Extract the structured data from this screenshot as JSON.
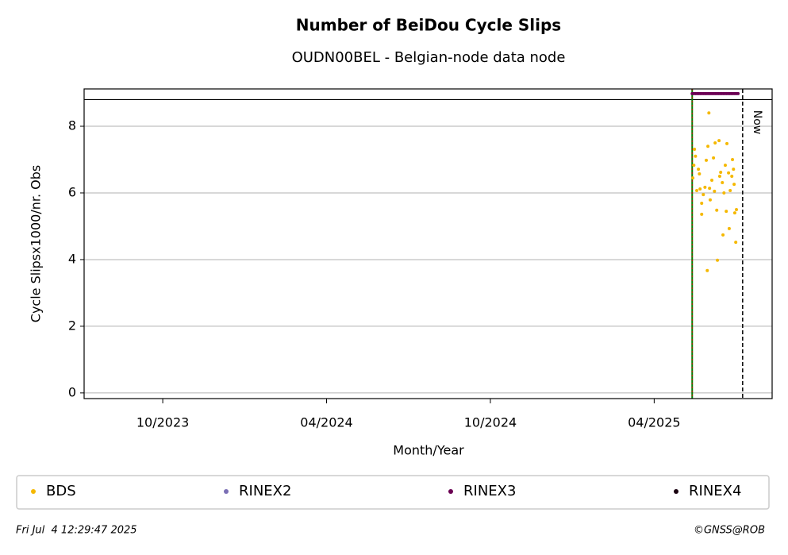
{
  "chart_data": {
    "type": "scatter",
    "title": "Number of BeiDou Cycle Slips",
    "subtitle": "OUDN00BEL - Belgian-node data node",
    "x_label": "Month/Year",
    "y_label": "Cycle Slipsx1000/nr. Obs",
    "xlim": [
      2023.51,
      2025.61
    ],
    "xticks": [
      {
        "value": 2023.75,
        "label": "10/2023"
      },
      {
        "value": 2024.25,
        "label": "04/2024"
      },
      {
        "value": 2024.75,
        "label": "10/2024"
      },
      {
        "value": 2025.25,
        "label": "04/2025"
      }
    ],
    "ylim": [
      -0.17,
      9.12
    ],
    "yticks": [
      0,
      2,
      4,
      6,
      8
    ],
    "grid": true,
    "hlines": [
      8.8
    ],
    "vlines": [
      {
        "x": 2025.366,
        "color": "#008000"
      },
      {
        "x": 2025.52,
        "label": "Now",
        "color": "#000000"
      }
    ],
    "legend": "bottom",
    "series": [
      {
        "name": "BDS",
        "color": "#f5b800",
        "x": [
          2025.368,
          2025.371,
          2025.373,
          2025.376,
          2025.38,
          2025.385,
          2025.388,
          2025.39,
          2025.395,
          2025.395,
          2025.4,
          2025.405,
          2025.409,
          2025.412,
          2025.414,
          2025.417,
          2025.419,
          2025.421,
          2025.426,
          2025.431,
          2025.434,
          2025.436,
          2025.441,
          2025.443,
          2025.448,
          2025.45,
          2025.453,
          2025.458,
          2025.46,
          2025.463,
          2025.467,
          2025.47,
          2025.472,
          2025.477,
          2025.479,
          2025.482,
          2025.487,
          2025.489,
          2025.492,
          2025.494,
          2025.496,
          2025.499,
          2025.501
        ],
        "values": [
          6.45,
          6.83,
          7.31,
          7.1,
          6.07,
          6.71,
          6.57,
          6.12,
          5.69,
          5.36,
          5.95,
          6.17,
          6.98,
          3.67,
          7.4,
          8.4,
          6.14,
          5.79,
          6.38,
          7.05,
          6.05,
          7.5,
          5.48,
          3.98,
          7.57,
          6.5,
          6.62,
          6.31,
          4.74,
          6.0,
          6.83,
          5.45,
          7.48,
          6.6,
          4.93,
          6.07,
          6.5,
          7.0,
          6.71,
          6.26,
          5.4,
          4.52,
          5.5
        ]
      },
      {
        "name": "RINEX2",
        "color": "#7b6fb5",
        "x": [],
        "values": []
      },
      {
        "name": "RINEX3",
        "color": "#6b0053",
        "x": [
          2025.366,
          2025.371,
          2025.376,
          2025.381,
          2025.386,
          2025.391,
          2025.396,
          2025.401,
          2025.406,
          2025.411,
          2025.416,
          2025.421,
          2025.426,
          2025.431,
          2025.436,
          2025.441,
          2025.446,
          2025.451,
          2025.456,
          2025.461,
          2025.466,
          2025.471,
          2025.476,
          2025.481,
          2025.486,
          2025.491,
          2025.496,
          2025.501,
          2025.506
        ],
        "values": [
          8.98,
          8.98,
          8.98,
          8.98,
          8.98,
          8.98,
          8.98,
          8.98,
          8.98,
          8.98,
          8.98,
          8.98,
          8.98,
          8.98,
          8.98,
          8.98,
          8.98,
          8.98,
          8.98,
          8.98,
          8.98,
          8.98,
          8.98,
          8.98,
          8.98,
          8.98,
          8.98,
          8.98,
          8.98
        ]
      },
      {
        "name": "RINEX4",
        "color": "#1a0010",
        "x": [],
        "values": []
      }
    ],
    "footer_left": "Fri Jul  4 12:29:47 2025",
    "footer_right": "©GNSS@ROB"
  }
}
